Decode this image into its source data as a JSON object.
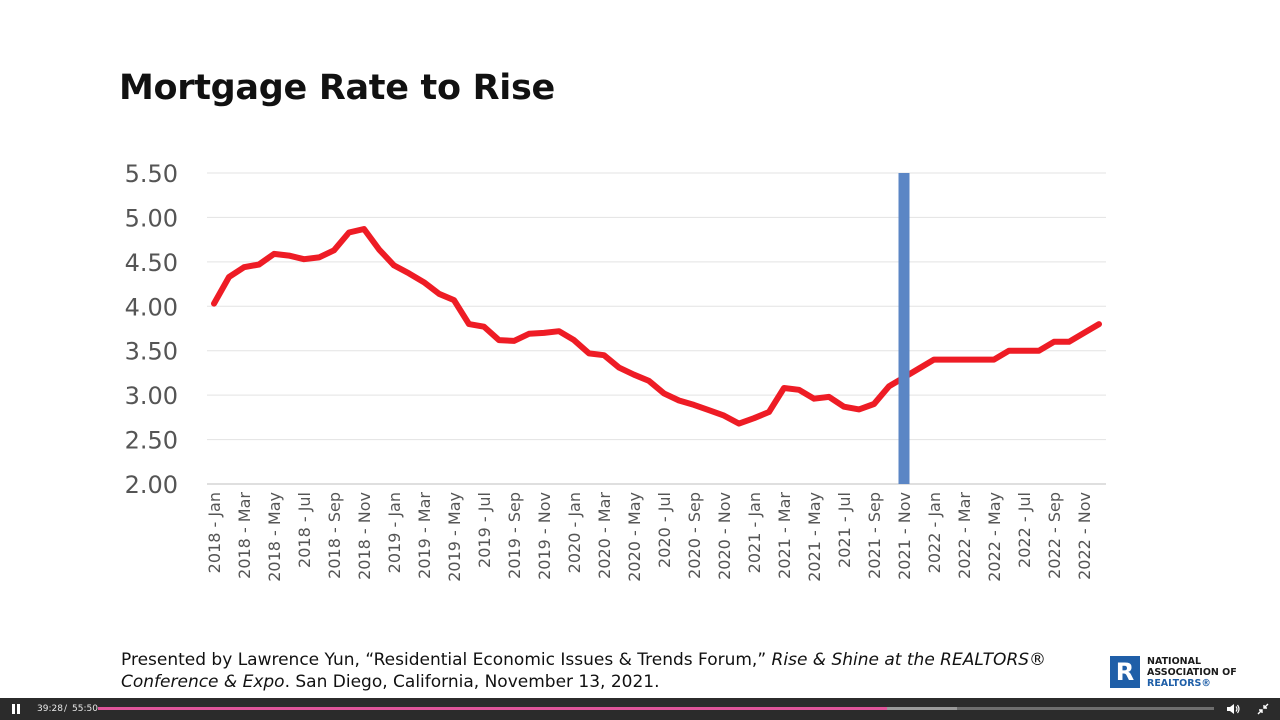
{
  "slide": {
    "title": "Mortgage Rate to Rise",
    "footer": {
      "part1": "Presented by Lawrence Yun, “Residential Economic Issues & Trends Forum,” ",
      "part2_italic": "Rise & Shine at the REALTORS® Conference & Expo",
      "part3": ". San Diego, California, November 13, 2021."
    },
    "logo": {
      "mark": "R",
      "line1": "NATIONAL",
      "line2": "ASSOCIATION OF",
      "line3": "REALTORS®",
      "color": "#1f5fa8"
    }
  },
  "chart_data": {
    "type": "line",
    "title": "Mortgage Rate to Rise",
    "xlabel": "",
    "ylabel": "",
    "ylim": [
      2.0,
      5.5
    ],
    "yticks": [
      "2.00",
      "2.50",
      "3.00",
      "3.50",
      "4.00",
      "4.50",
      "5.00",
      "5.50"
    ],
    "grid": true,
    "legend": "none",
    "x_tick_labels": [
      "2018 - Jan",
      "2018 - Mar",
      "2018 - May",
      "2018 - Jul",
      "2018 - Sep",
      "2018 - Nov",
      "2019 - Jan",
      "2019 - Mar",
      "2019 - May",
      "2019 - Jul",
      "2019 - Sep",
      "2019 - Nov",
      "2020 - Jan",
      "2020 - Mar",
      "2020 - May",
      "2020 - Jul",
      "2020 - Sep",
      "2020 - Nov",
      "2021 - Jan",
      "2021 - Mar",
      "2021 - May",
      "2021 - Jul",
      "2021 - Sep",
      "2021 - Nov",
      "2022 - Jan",
      "2022 - Mar",
      "2022 - May",
      "2022 - Jul",
      "2022 - Sep",
      "2022 - Nov"
    ],
    "x": [
      "2018-01",
      "2018-02",
      "2018-03",
      "2018-04",
      "2018-05",
      "2018-06",
      "2018-07",
      "2018-08",
      "2018-09",
      "2018-10",
      "2018-11",
      "2018-12",
      "2019-01",
      "2019-02",
      "2019-03",
      "2019-04",
      "2019-05",
      "2019-06",
      "2019-07",
      "2019-08",
      "2019-09",
      "2019-10",
      "2019-11",
      "2019-12",
      "2020-01",
      "2020-02",
      "2020-03",
      "2020-04",
      "2020-05",
      "2020-06",
      "2020-07",
      "2020-08",
      "2020-09",
      "2020-10",
      "2020-11",
      "2020-12",
      "2021-01",
      "2021-02",
      "2021-03",
      "2021-04",
      "2021-05",
      "2021-06",
      "2021-07",
      "2021-08",
      "2021-09",
      "2021-10",
      "2021-11",
      "2021-12",
      "2022-01",
      "2022-02",
      "2022-03",
      "2022-04",
      "2022-05",
      "2022-06",
      "2022-07",
      "2022-08",
      "2022-09",
      "2022-10",
      "2022-11",
      "2022-12"
    ],
    "series": [
      {
        "color": "#ee1c25",
        "values": [
          4.03,
          4.33,
          4.44,
          4.47,
          4.59,
          4.57,
          4.53,
          4.55,
          4.63,
          4.83,
          4.87,
          4.64,
          4.46,
          4.37,
          4.27,
          4.14,
          4.07,
          3.8,
          3.77,
          3.62,
          3.61,
          3.69,
          3.7,
          3.72,
          3.62,
          3.47,
          3.45,
          3.31,
          3.23,
          3.16,
          3.02,
          2.94,
          2.89,
          2.83,
          2.77,
          2.68,
          2.74,
          2.81,
          3.08,
          3.06,
          2.96,
          2.98,
          2.87,
          2.84,
          2.9,
          3.1,
          3.2,
          3.3,
          3.4,
          3.4,
          3.4,
          3.4,
          3.4,
          3.5,
          3.5,
          3.5,
          3.6,
          3.6,
          3.7,
          3.8
        ]
      }
    ],
    "marker_line": {
      "x": "2021-11",
      "color": "#5b86c5"
    }
  },
  "player": {
    "current_time": "39:28",
    "separator": "/",
    "duration": "55:50",
    "played_fraction": 0.707,
    "buffered_fraction": 0.77,
    "accent": "#e0559a"
  }
}
